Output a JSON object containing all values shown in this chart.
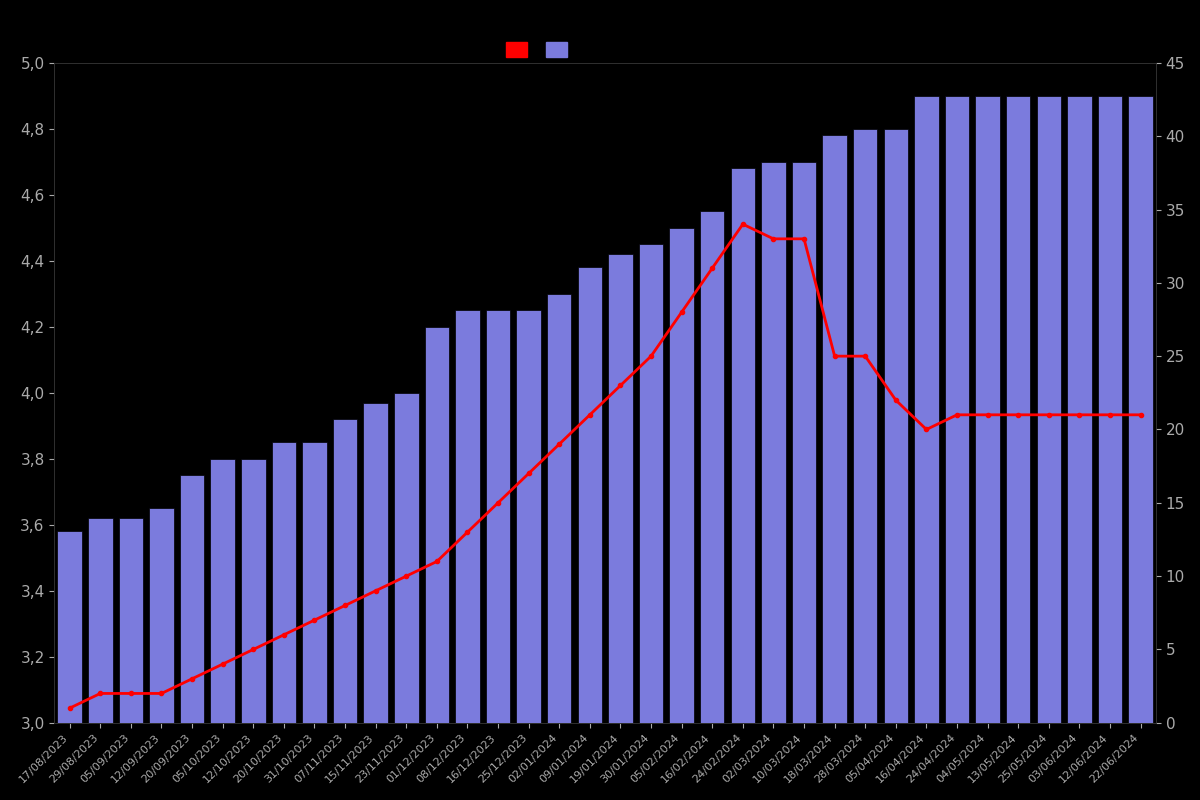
{
  "dates": [
    "17/08/2023",
    "29/08/2023",
    "05/09/2023",
    "12/09/2023",
    "20/09/2023",
    "05/10/2023",
    "12/10/2023",
    "20/10/2023",
    "31/10/2023",
    "07/11/2023",
    "15/11/2023",
    "23/11/2023",
    "01/12/2023",
    "08/12/2023",
    "16/12/2023",
    "25/12/2023",
    "02/01/2024",
    "09/01/2024",
    "19/01/2024",
    "30/01/2024",
    "05/02/2024",
    "16/02/2024",
    "24/02/2024",
    "02/03/2024",
    "10/03/2024",
    "18/03/2024",
    "28/03/2024",
    "05/04/2024",
    "16/04/2024",
    "24/04/2024",
    "04/05/2024",
    "13/05/2024",
    "25/05/2024",
    "03/06/2024",
    "12/06/2024",
    "22/06/2024"
  ],
  "ratings": [
    3.58,
    3.62,
    3.62,
    3.65,
    3.75,
    3.8,
    3.8,
    3.85,
    3.85,
    3.92,
    3.97,
    4.0,
    4.2,
    4.25,
    4.25,
    4.25,
    4.3,
    4.38,
    4.42,
    4.45,
    4.5,
    4.55,
    4.68,
    4.7,
    4.7,
    4.78,
    4.8,
    4.8,
    4.9,
    4.9,
    4.9,
    4.9,
    4.9,
    4.9,
    4.9,
    4.9
  ],
  "counts": [
    1,
    2,
    2,
    2,
    3,
    4,
    5,
    6,
    7,
    8,
    9,
    10,
    11,
    13,
    15,
    17,
    19,
    21,
    23,
    25,
    28,
    31,
    34,
    33,
    33,
    25,
    25,
    22,
    20,
    21,
    21,
    21,
    21,
    21,
    21,
    21
  ],
  "bar_color": "#7b7bdd",
  "bar_edge_color": "#000000",
  "line_color": "#ff0000",
  "background_color": "#000000",
  "text_color": "#aaaaaa",
  "ylim_left": [
    3.0,
    5.0
  ],
  "ylim_right": [
    0,
    45
  ],
  "yticks_left": [
    3.0,
    3.2,
    3.4,
    3.6,
    3.8,
    4.0,
    4.2,
    4.4,
    4.6,
    4.8,
    5.0
  ],
  "yticks_right": [
    0,
    5,
    10,
    15,
    20,
    25,
    30,
    35,
    40,
    45
  ]
}
